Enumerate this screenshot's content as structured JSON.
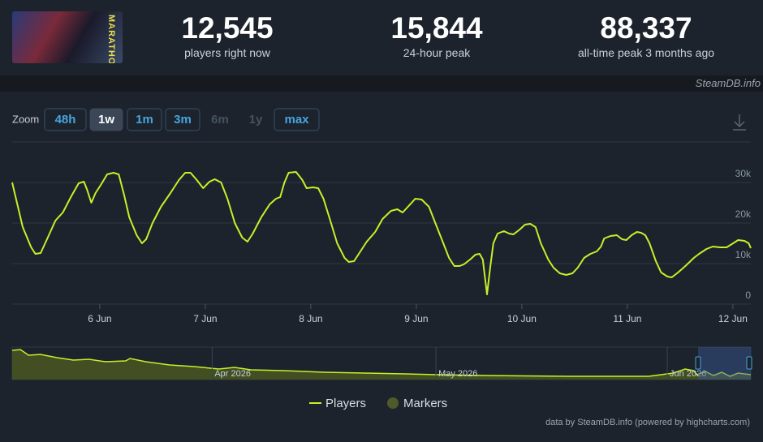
{
  "header": {
    "thumbnail_title": "MARATHON",
    "stats": [
      {
        "value": "12,545",
        "label": "players right now"
      },
      {
        "value": "15,844",
        "label": "24-hour peak"
      },
      {
        "value": "88,337",
        "label": "all-time peak 3 months ago"
      }
    ],
    "source": "SteamDB.info"
  },
  "zoom": {
    "label": "Zoom",
    "buttons": [
      {
        "label": "48h",
        "state": "enabled"
      },
      {
        "label": "1w",
        "state": "selected"
      },
      {
        "label": "1m",
        "state": "enabled"
      },
      {
        "label": "3m",
        "state": "enabled"
      },
      {
        "label": "6m",
        "state": "disabled"
      },
      {
        "label": "1y",
        "state": "disabled"
      },
      {
        "label": "max",
        "state": "enabled"
      }
    ]
  },
  "chart_data": [
    {
      "type": "line",
      "x": [
        5.17,
        5.27,
        5.35,
        5.39,
        5.44,
        5.5,
        5.58,
        5.65,
        5.73,
        5.8,
        5.85,
        5.88,
        5.92,
        5.96,
        6.01,
        6.07,
        6.13,
        6.18,
        6.23,
        6.28,
        6.35,
        6.4,
        6.44,
        6.5,
        6.58,
        6.67,
        6.75,
        6.81,
        6.86,
        6.92,
        6.98,
        7.04,
        7.09,
        7.15,
        7.21,
        7.28,
        7.35,
        7.4,
        7.45,
        7.53,
        7.61,
        7.67,
        7.71,
        7.75,
        7.79,
        7.86,
        7.92,
        7.96,
        8.02,
        8.07,
        8.12,
        8.18,
        8.25,
        8.32,
        8.36,
        8.41,
        8.46,
        8.53,
        8.61,
        8.68,
        8.76,
        8.82,
        8.87,
        8.92,
        8.99,
        9.05,
        9.12,
        9.18,
        9.25,
        9.31,
        9.36,
        9.41,
        9.45,
        9.51,
        9.56,
        9.6,
        9.63,
        9.67,
        9.7,
        9.73,
        9.77,
        9.83,
        9.88,
        9.92,
        9.98,
        10.03,
        10.08,
        10.13,
        10.18,
        10.25,
        10.3,
        10.36,
        10.42,
        10.48,
        10.53,
        10.59,
        10.65,
        10.71,
        10.75,
        10.78,
        10.84,
        10.9,
        10.95,
        10.99,
        11.04,
        11.09,
        11.13,
        11.17,
        11.21,
        11.27,
        11.32,
        11.38,
        11.42,
        11.48,
        11.55,
        11.63,
        11.68,
        11.75,
        11.81,
        11.88,
        11.94,
        11.99,
        12.05,
        12.11,
        12.15,
        12.17
      ],
      "series": [
        {
          "name": "Players",
          "color": "#c6f02a",
          "values": [
            30000,
            19000,
            14000,
            12400,
            12600,
            16000,
            20600,
            22600,
            26600,
            29800,
            30200,
            28200,
            25000,
            27400,
            29400,
            32000,
            32400,
            32000,
            27000,
            21400,
            17000,
            15000,
            16000,
            20000,
            24000,
            27400,
            30600,
            32400,
            32400,
            30600,
            28600,
            30200,
            30800,
            30000,
            26000,
            20000,
            16400,
            15400,
            17400,
            21400,
            24600,
            26000,
            26400,
            30000,
            32400,
            32600,
            30600,
            28600,
            28800,
            28600,
            26000,
            21000,
            15000,
            11400,
            10400,
            10600,
            12600,
            15400,
            17800,
            21000,
            23000,
            23400,
            22600,
            24000,
            26000,
            25800,
            24000,
            20000,
            15400,
            11400,
            9400,
            9400,
            9800,
            11000,
            12200,
            12400,
            11000,
            2400,
            9000,
            15000,
            17400,
            18000,
            17400,
            17200,
            18400,
            19600,
            19800,
            19000,
            15000,
            11000,
            9000,
            7600,
            7200,
            7600,
            9000,
            11400,
            12400,
            13000,
            14200,
            16200,
            16800,
            17000,
            16000,
            15800,
            17000,
            17800,
            17600,
            17000,
            15000,
            10600,
            7800,
            6800,
            6600,
            7800,
            9400,
            11400,
            12400,
            13600,
            14200,
            14000,
            14000,
            14800,
            15800,
            15600,
            15000,
            13800
          ]
        }
      ],
      "markers": {
        "name": "Markers",
        "color": "#4f5a2a"
      },
      "xlim": [
        5.17,
        12.17
      ],
      "ylim": [
        0,
        40000
      ],
      "xticks": [
        {
          "value": 6,
          "label": "6 Jun"
        },
        {
          "value": 7,
          "label": "7 Jun"
        },
        {
          "value": 8,
          "label": "8 Jun"
        },
        {
          "value": 9,
          "label": "9 Jun"
        },
        {
          "value": 10,
          "label": "10 Jun"
        },
        {
          "value": 11,
          "label": "11 Jun"
        },
        {
          "value": 12,
          "label": "12 Jun"
        }
      ],
      "yticks": [
        0,
        {
          "value": 10000,
          "label": "10k"
        },
        {
          "value": 20000,
          "label": "20k"
        },
        {
          "value": 30000,
          "label": "30k"
        }
      ],
      "grid": true,
      "credits": "data by SteamDB.info (powered by highcharts.com)"
    },
    {
      "type": "area",
      "x": [
        64.2,
        65.3,
        66.4,
        68.0,
        70.2,
        72.4,
        74.5,
        76.7,
        79.4,
        80.0,
        82.1,
        85.3,
        88.6,
        91.9,
        94.0,
        96.2,
        100.6,
        106.0,
        111.4,
        116.9,
        121.2,
        127.7,
        138.6,
        149.5,
        152.8,
        154.4,
        155.5,
        156.0,
        157.1,
        158.2,
        159.3,
        160.4,
        161.5,
        163.2
      ],
      "series": [
        {
          "color": "#c6f02a",
          "fill": "#4a5722",
          "values": [
            90000,
            92500,
            75000,
            77500,
            67500,
            60000,
            62500,
            55000,
            57500,
            65000,
            55000,
            45000,
            40000,
            32500,
            37500,
            30000,
            27500,
            22500,
            20000,
            17500,
            15000,
            12500,
            10000,
            10000,
            20000,
            32500,
            27500,
            15000,
            25000,
            12500,
            22500,
            10000,
            20000,
            15000
          ]
        }
      ],
      "xlim": [
        64.2,
        163.2
      ],
      "ylim": [
        0,
        100000
      ],
      "xticks": [
        {
          "value": 91,
          "label": "Apr 2026"
        },
        {
          "value": 121,
          "label": "May 2026"
        },
        {
          "value": 152,
          "label": "Jun 2026"
        }
      ]
    }
  ]
}
